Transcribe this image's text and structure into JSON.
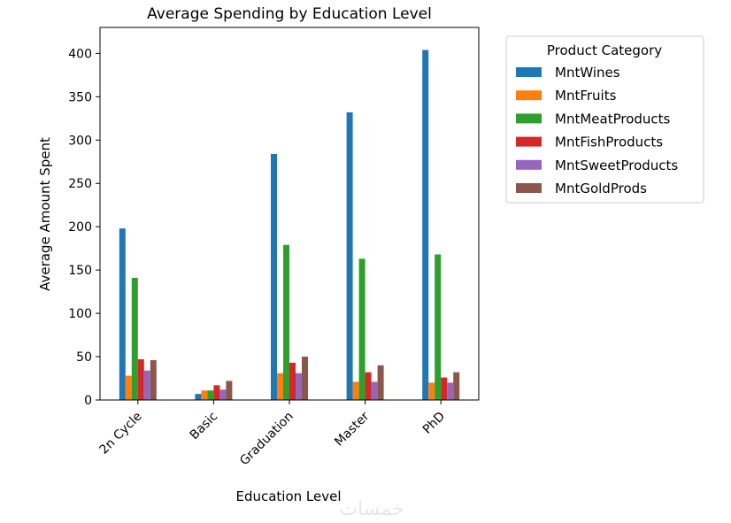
{
  "chart_data": {
    "type": "bar",
    "title": "Average Spending by Education Level",
    "xlabel": "Education Level",
    "ylabel": "Average Amount Spent",
    "ylim": [
      0,
      430
    ],
    "yticks": [
      0,
      50,
      100,
      150,
      200,
      250,
      300,
      350,
      400
    ],
    "grid": false,
    "legend_placement": "outside-right",
    "legend_title": "Product Category",
    "categories": [
      "2n Cycle",
      "Basic",
      "Graduation",
      "Master",
      "PhD"
    ],
    "series": [
      {
        "name": "MntWines",
        "color": "#1f77b4",
        "values": [
          198,
          7,
          284,
          332,
          404
        ]
      },
      {
        "name": "MntFruits",
        "color": "#ff7f0e",
        "values": [
          28,
          11,
          31,
          21,
          20
        ]
      },
      {
        "name": "MntMeatProducts",
        "color": "#2ca02c",
        "values": [
          141,
          11,
          179,
          163,
          168
        ]
      },
      {
        "name": "MntFishProducts",
        "color": "#d62728",
        "values": [
          47,
          17,
          43,
          32,
          26
        ]
      },
      {
        "name": "MntSweetProducts",
        "color": "#9467bd",
        "values": [
          34,
          12,
          31,
          21,
          20
        ]
      },
      {
        "name": "MntGoldProds",
        "color": "#8c564b",
        "values": [
          46,
          22,
          50,
          40,
          32
        ]
      }
    ]
  },
  "watermark": "خمسات"
}
